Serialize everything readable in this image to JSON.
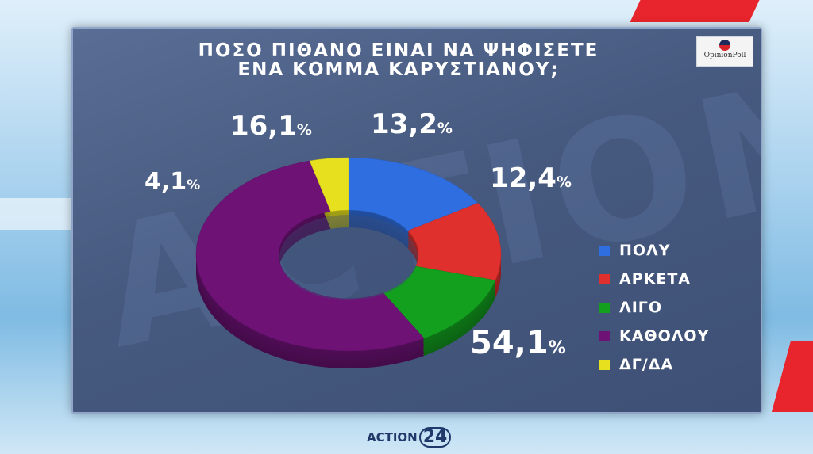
{
  "title_line1": "ΠΟΣΟ ΠΙΘΑΝΟ ΕΙΝΑΙ ΝΑ ΨΗΦΙΣΕΤΕ",
  "title_line2": "ΕΝΑ ΚΟΜΜΑ ΚΑΡΥΣΤΙΑΝΟΥ;",
  "logo_text": "OpinionPoll",
  "brand": {
    "name": "ACTION",
    "number": "24"
  },
  "watermark": "ACTION",
  "chart_data": {
    "type": "pie",
    "title": "ΠΟΣΟ ΠΙΘΑΝΟ ΕΙΝΑΙ ΝΑ ΨΗΦΙΣΕΤΕ ΕΝΑ ΚΟΜΜΑ ΚΑΡΥΣΤΙΑΝΟΥ;",
    "donut": true,
    "legend_position": "right",
    "slices": [
      {
        "label": "ΠΟΛΥ",
        "value": 16.1,
        "display": "16,1",
        "color": "#2f6ee0"
      },
      {
        "label": "ΑΡΚΕΤΑ",
        "value": 13.2,
        "display": "13,2",
        "color": "#e0302e"
      },
      {
        "label": "ΛΙΓΟ",
        "value": 12.4,
        "display": "12,4",
        "color": "#13a01f"
      },
      {
        "label": "ΚΑΘΟΛΟΥ",
        "value": 54.1,
        "display": "54,1",
        "color": "#6e1276"
      },
      {
        "label": "ΔΓ/ΔΑ",
        "value": 4.1,
        "display": "4,1",
        "color": "#e6e01e"
      }
    ],
    "unit": "%"
  }
}
